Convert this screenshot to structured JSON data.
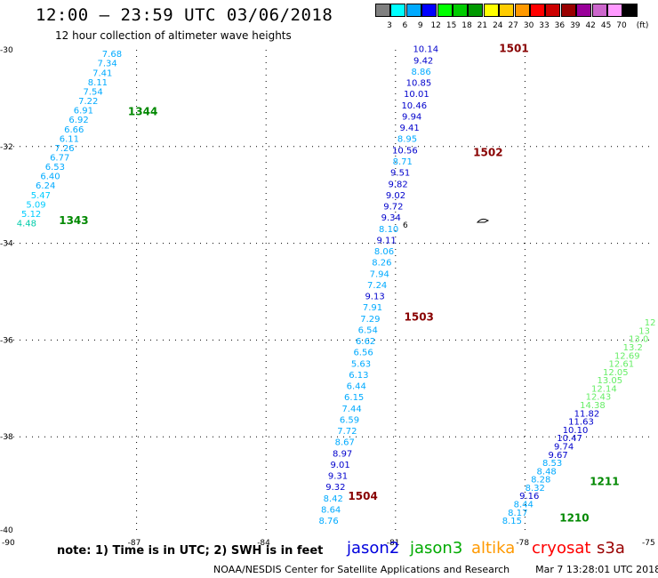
{
  "header": {
    "title": "12:00 – 23:59 UTC 03/06/2018",
    "subtitle": "12 hour collection of altimeter wave heights"
  },
  "colorbar": {
    "unit": "(ft)",
    "boxes": [
      {
        "color": "#808080",
        "label": "3"
      },
      {
        "color": "#00ffff",
        "label": "6"
      },
      {
        "color": "#00aaff",
        "label": "9"
      },
      {
        "color": "#0000ff",
        "label": "12"
      },
      {
        "color": "#00ff00",
        "label": "15"
      },
      {
        "color": "#00cc00",
        "label": "18"
      },
      {
        "color": "#009900",
        "label": "21"
      },
      {
        "color": "#ffff00",
        "label": "24"
      },
      {
        "color": "#ffcc00",
        "label": "27"
      },
      {
        "color": "#ff9900",
        "label": "30"
      },
      {
        "color": "#ff0000",
        "label": "33"
      },
      {
        "color": "#cc0000",
        "label": "36"
      },
      {
        "color": "#990000",
        "label": "39"
      },
      {
        "color": "#990099",
        "label": "42"
      },
      {
        "color": "#cc66cc",
        "label": "45"
      },
      {
        "color": "#ff99ff",
        "label": "70"
      },
      {
        "color": "#000000",
        "label": ""
      }
    ]
  },
  "map": {
    "lat_ticks": [
      "-30",
      "-32",
      "-34",
      "-36",
      "-38",
      "-40"
    ],
    "lon_ticks": [
      "-90",
      "-87",
      "-84",
      "-81",
      "-78",
      "-75"
    ]
  },
  "chart_data": {
    "type": "scatter",
    "x_range": [
      -90,
      -75
    ],
    "y_range": [
      -40,
      -30
    ],
    "tracks": [
      {
        "id": "track-west-jason3",
        "lon_start": -87.57,
        "lat_start": -30.15,
        "lon_end": -89.55,
        "lat_end": -33.65,
        "values": [
          "7.68",
          "7.34",
          "7.41",
          "8.11",
          "7.54",
          "7.22",
          "6.91",
          "6.92",
          "6.66",
          "6.11",
          "7.26",
          "6.77",
          "6.53",
          "6.40",
          "6.24",
          "5.47",
          "5.09",
          "5.12",
          "4.48"
        ],
        "colors": [
          "#00aaff",
          "#00aaff",
          "#00aaff",
          "#00aaff",
          "#00aaff",
          "#00aaff",
          "#00aaff",
          "#00aaff",
          "#00aaff",
          "#00aaff",
          "#00aaff",
          "#00aaff",
          "#00aaff",
          "#00aaff",
          "#00aaff",
          "#00ccff",
          "#00ccff",
          "#00ccff",
          "#00ccaa"
        ]
      },
      {
        "id": "track-center-jason2",
        "lon_start": -80.3,
        "lat_start": -30.05,
        "lon_end": -82.55,
        "lat_end": -39.8,
        "values": [
          "10.14",
          "9.42",
          "8.86",
          "10.85",
          "10.01",
          "10.46",
          "9.94",
          "9.41",
          "8.95",
          "10.56",
          "8.71",
          "9.51",
          "9.82",
          "9.02",
          "9.72",
          "9.34",
          "8.10",
          "9.11",
          "8.06",
          "8.26",
          "7.94",
          "7.24",
          "9.13",
          "7.91",
          "7.29",
          "6.54",
          "6.62",
          "6.56",
          "5.63",
          "6.13",
          "6.44",
          "6.15",
          "7.44",
          "6.59",
          "7.72",
          "8.67",
          "8.97",
          "9.01",
          "9.31",
          "9.32",
          "8.42",
          "8.64",
          "8.76"
        ],
        "colors": [
          "#0000cc",
          "#0000cc",
          "#00aaff",
          "#0000cc",
          "#0000cc",
          "#0000cc",
          "#0000cc",
          "#0000cc",
          "#00aaff",
          "#0000cc",
          "#00aaff",
          "#0000cc",
          "#0000cc",
          "#0000cc",
          "#0000cc",
          "#0000cc",
          "#00aaff",
          "#0000cc",
          "#00aaff",
          "#00aaff",
          "#00aaff",
          "#00aaff",
          "#0000cc",
          "#00aaff",
          "#00aaff",
          "#00aaff",
          "#00aaff",
          "#00aaff",
          "#00aaff",
          "#00aaff",
          "#00aaff",
          "#00aaff",
          "#00aaff",
          "#00aaff",
          "#00aaff",
          "#00aaff",
          "#0000cc",
          "#0000cc",
          "#0000cc",
          "#0000cc",
          "#00aaff",
          "#00aaff",
          "#00aaff"
        ]
      },
      {
        "id": "track-east-jason2",
        "lon_start": -75.1,
        "lat_start": -35.7,
        "lon_end": -78.3,
        "lat_end": -39.8,
        "values": [
          "12",
          "13",
          "13.0",
          "13.2",
          "12.69",
          "12.61",
          "12.05",
          "13.05",
          "12.14",
          "12.43",
          "14.38",
          "11.82",
          "11.63",
          "10.10",
          "10.47",
          "9.74",
          "9.67",
          "8.53",
          "8.48",
          "8.28",
          "8.32",
          "9.16",
          "8.44",
          "8.17",
          "8.15"
        ],
        "colors": [
          "#66ee66",
          "#66ee66",
          "#66ee66",
          "#66ee66",
          "#66ee66",
          "#66ee66",
          "#66ee66",
          "#66ee66",
          "#66ee66",
          "#66ee66",
          "#66ee66",
          "#0000cc",
          "#0000cc",
          "#0000cc",
          "#0000cc",
          "#0000cc",
          "#0000cc",
          "#00aaff",
          "#00aaff",
          "#00aaff",
          "#00aaff",
          "#0000cc",
          "#00aaff",
          "#00aaff",
          "#00aaff"
        ]
      }
    ],
    "time_labels": [
      {
        "text": "1344",
        "color": "#008800",
        "lon": -87.2,
        "lat": -31.35
      },
      {
        "text": "1343",
        "color": "#008800",
        "lon": -88.8,
        "lat": -33.6
      },
      {
        "text": "1501",
        "color": "#880000",
        "lon": -78.6,
        "lat": -30.05
      },
      {
        "text": "1502",
        "color": "#880000",
        "lon": -79.2,
        "lat": -32.2
      },
      {
        "text": "1503",
        "color": "#880000",
        "lon": -80.8,
        "lat": -35.6
      },
      {
        "text": "1504",
        "color": "#880000",
        "lon": -82.1,
        "lat": -39.3
      },
      {
        "text": "1211",
        "color": "#008800",
        "lon": -76.5,
        "lat": -39.0
      },
      {
        "text": "1210",
        "color": "#008800",
        "lon": -77.2,
        "lat": -39.75
      }
    ]
  },
  "legend_note": "note: 1) Time is in UTC; 2) SWH is in feet",
  "satellites": [
    {
      "name": "jason2",
      "color": "#0000dd"
    },
    {
      "name": "jason3",
      "color": "#00aa00"
    },
    {
      "name": "altika",
      "color": "#ff9900"
    },
    {
      "name": "cryosat",
      "color": "#ff0000"
    },
    {
      "name": "s3a",
      "color": "#990000"
    }
  ],
  "footer": {
    "credit": "NOAA/NESDIS Center for Satellite Applications and Research",
    "timestamp": "Mar  7 13:28:01 UTC 2018"
  }
}
